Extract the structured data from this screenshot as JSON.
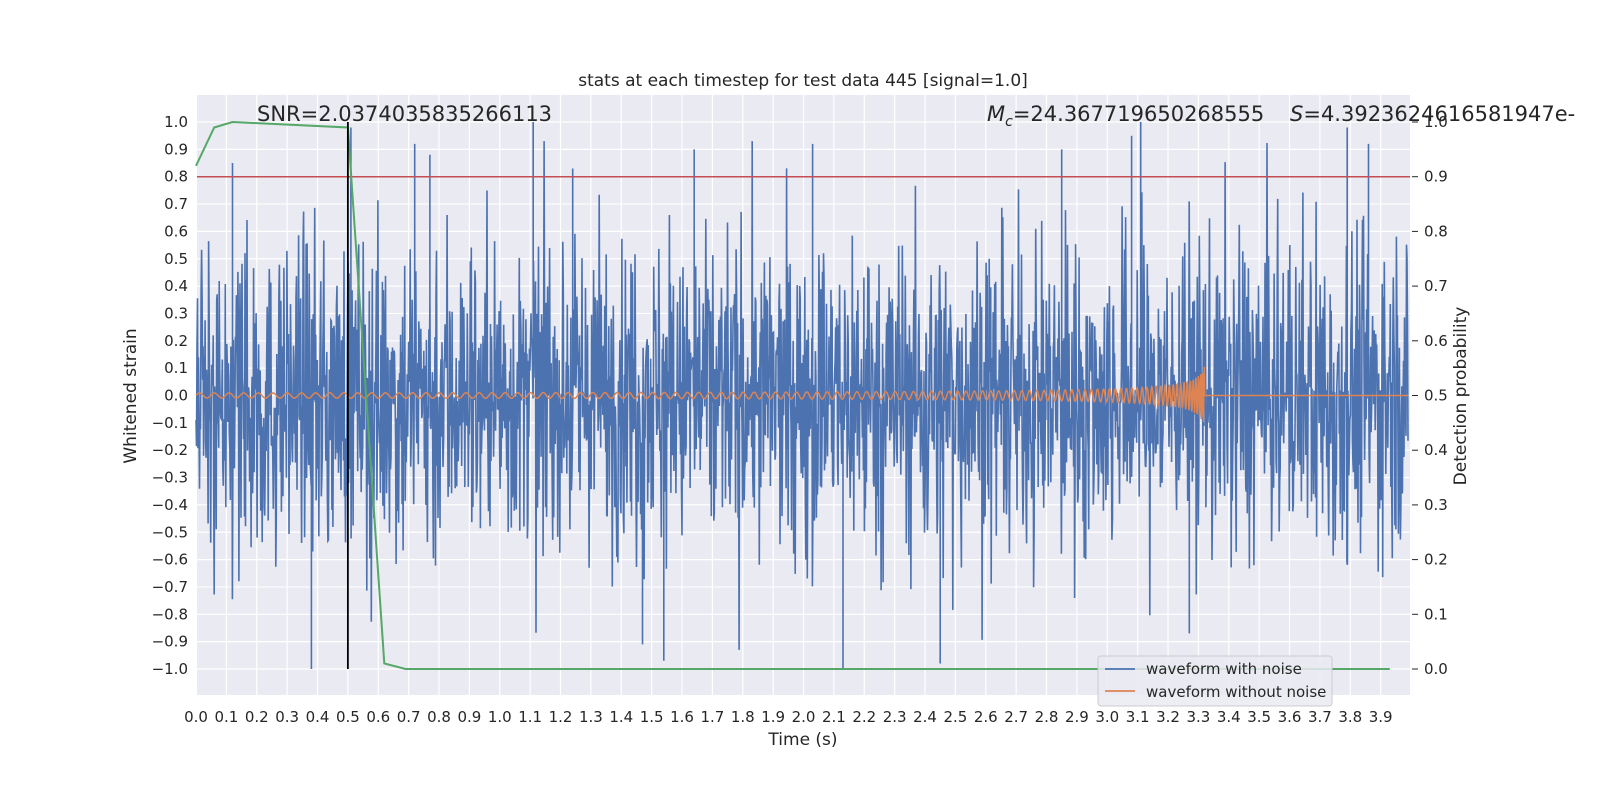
{
  "chart_data": {
    "type": "line",
    "title": "stats at each timestep for test data 445 [signal=1.0]",
    "xlabel": "Time (s)",
    "ylabel": "Whitened strain",
    "y2label": "Detection probability",
    "xlim": [
      0.0,
      3.99
    ],
    "ylim": [
      -1.1,
      1.1
    ],
    "y2lim": [
      -0.05,
      1.05
    ],
    "grid": true,
    "legend_position": "lower-right",
    "x_ticks": [
      "0.0",
      "0.1",
      "0.2",
      "0.3",
      "0.4",
      "0.5",
      "0.6",
      "0.7",
      "0.8",
      "0.9",
      "1.0",
      "1.1",
      "1.2",
      "1.3",
      "1.4",
      "1.5",
      "1.6",
      "1.7",
      "1.8",
      "1.9",
      "2.0",
      "2.1",
      "2.2",
      "2.3",
      "2.4",
      "2.5",
      "2.6",
      "2.7",
      "2.8",
      "2.9",
      "3.0",
      "3.1",
      "3.2",
      "3.3",
      "3.4",
      "3.5",
      "3.6",
      "3.7",
      "3.8",
      "3.9"
    ],
    "y_ticks": [
      "1.0",
      "0.9",
      "0.8",
      "0.7",
      "0.6",
      "0.5",
      "0.4",
      "0.3",
      "0.2",
      "0.1",
      "0.0",
      "−0.1",
      "−0.2",
      "−0.3",
      "−0.4",
      "−0.5",
      "−0.6",
      "−0.7",
      "−0.8",
      "−0.9",
      "−1.0"
    ],
    "y2_ticks": [
      "1.0",
      "0.9",
      "0.8",
      "0.7",
      "0.6",
      "0.5",
      "0.4",
      "0.3",
      "0.2",
      "0.1",
      "0.0"
    ],
    "annotations": {
      "snr": "SNR=2.0374035835266113",
      "mc_symbol": "M",
      "mc_sub": "c",
      "mc_value": "=24.367719650268555",
      "s_symbol": "S",
      "s_value": "=4.392362461658194​7e-"
    },
    "series": [
      {
        "name": "waveform with noise",
        "color": "#4c72b0",
        "description_values": "dense whitened-strain noise in approx [-1.0, 1.0]",
        "peaks": [
          {
            "x": 0.12,
            "y": 0.85
          },
          {
            "x": 0.38,
            "y": -1.0
          },
          {
            "x": 0.51,
            "y": 0.98
          },
          {
            "x": 0.72,
            "y": 0.92
          },
          {
            "x": 0.77,
            "y": 0.88
          },
          {
            "x": 1.11,
            "y": 1.0
          },
          {
            "x": 1.24,
            "y": 0.83
          },
          {
            "x": 1.47,
            "y": -0.91
          },
          {
            "x": 1.54,
            "y": -0.97
          },
          {
            "x": 1.64,
            "y": 0.9
          },
          {
            "x": 2.03,
            "y": 0.92
          },
          {
            "x": 2.13,
            "y": -1.0
          },
          {
            "x": 2.45,
            "y": -0.98
          },
          {
            "x": 2.85,
            "y": 0.9
          },
          {
            "x": 3.08,
            "y": 0.95
          },
          {
            "x": 3.11,
            "y": 1.0
          },
          {
            "x": 3.27,
            "y": -0.87
          },
          {
            "x": 3.79,
            "y": 0.98
          },
          {
            "x": 3.86,
            "y": 0.92
          }
        ]
      },
      {
        "name": "waveform without noise",
        "color": "#dd8452",
        "description_values": "chirp near 0.0 with amplitude growing to ~0.11 at t≈3.32 s, then flat"
      },
      {
        "name": "detection probability",
        "axis": "y2",
        "color": "#55a868",
        "x": [
          0.0,
          0.06,
          0.12,
          0.5,
          0.56,
          0.62,
          0.69,
          3.93
        ],
        "values": [
          0.92,
          0.99,
          1.0,
          0.99,
          0.5,
          0.01,
          0.0,
          0.0
        ]
      }
    ],
    "threshold_line": {
      "axis": "y2",
      "value": 0.9,
      "color": "#c44e52"
    },
    "vertical_marker": {
      "x": 0.5,
      "y_from": -1.0,
      "y_to": 1.0,
      "color": "#000000"
    }
  }
}
